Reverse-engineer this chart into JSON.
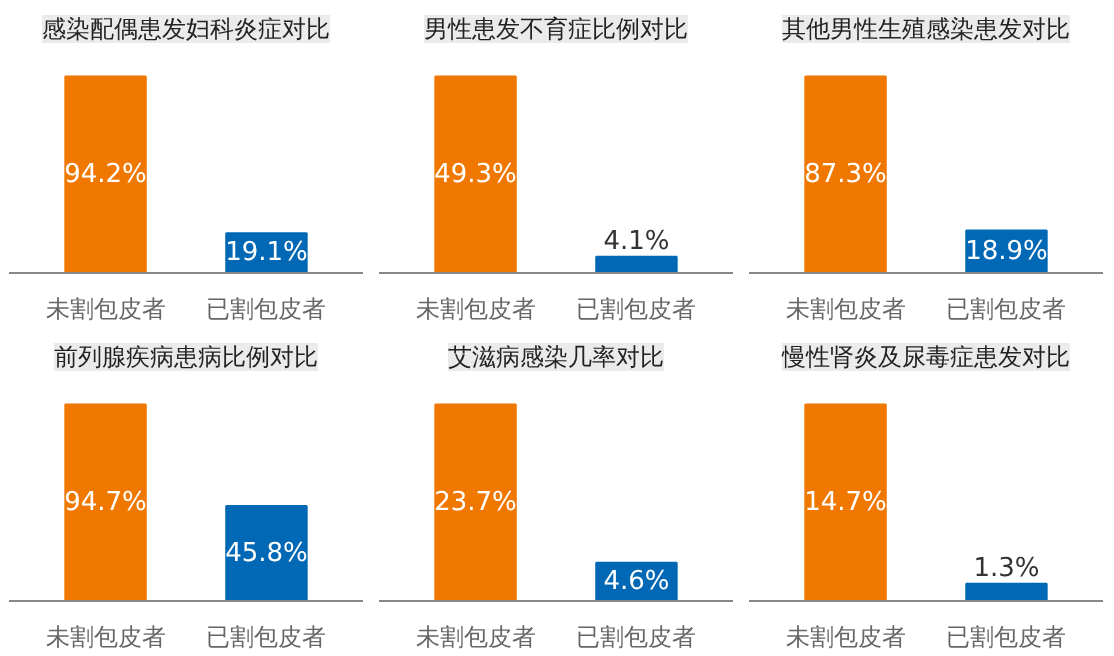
{
  "chart_data": [
    {
      "type": "bar",
      "title": "感染配偶患发妇科炎症对比",
      "categories": [
        "未割包皮者",
        "已割包皮者"
      ],
      "values": [
        94.2,
        19.1
      ],
      "value_labels": [
        "94.2%",
        "19.1%"
      ],
      "colors": [
        "#f07800",
        "#0068b4"
      ],
      "tick_labels": "x"
    },
    {
      "type": "bar",
      "title": "男性患发不育症比例对比",
      "categories": [
        "未割包皮者",
        "已割包皮者"
      ],
      "values": [
        49.3,
        4.1
      ],
      "value_labels": [
        "49.3%",
        "4.1%"
      ],
      "colors": [
        "#f07800",
        "#0068b4"
      ],
      "tick_labels": "x"
    },
    {
      "type": "bar",
      "title": "其他男性生殖感染患发对比",
      "categories": [
        "未割包皮者",
        "已割包皮者"
      ],
      "values": [
        87.3,
        18.9
      ],
      "value_labels": [
        "87.3%",
        "18.9%"
      ],
      "colors": [
        "#f07800",
        "#0068b4"
      ],
      "tick_labels": "x"
    },
    {
      "type": "bar",
      "title": "前列腺疾病患病比例对比",
      "categories": [
        "未割包皮者",
        "已割包皮者"
      ],
      "values": [
        94.7,
        45.8
      ],
      "value_labels": [
        "94.7%",
        "45.8%"
      ],
      "colors": [
        "#f07800",
        "#0068b4"
      ],
      "tick_labels": "x"
    },
    {
      "type": "bar",
      "title": "艾滋病感染几率对比",
      "categories": [
        "未割包皮者",
        "已割包皮者"
      ],
      "values": [
        23.7,
        4.6
      ],
      "value_labels": [
        "23.7%",
        "4.6%"
      ],
      "colors": [
        "#f07800",
        "#0068b4"
      ],
      "tick_labels": "x"
    },
    {
      "type": "bar",
      "title": "慢性肾炎及尿毒症患发对比",
      "categories": [
        "未割包皮者",
        "已割包皮者"
      ],
      "values": [
        14.7,
        1.3
      ],
      "value_labels": [
        "14.7%",
        "1.3%"
      ],
      "colors": [
        "#f07800",
        "#0068b4"
      ],
      "tick_labels": "x"
    }
  ]
}
